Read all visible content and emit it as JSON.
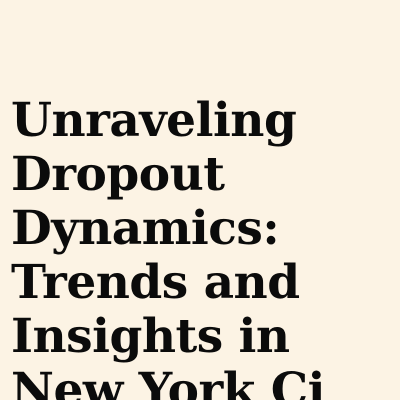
{
  "title": {
    "lines": [
      "Unraveling",
      "Dropout",
      "Dynamics:",
      "Trends and",
      "Insights in",
      "New York Ci"
    ]
  },
  "colors": {
    "background": "#fcf3e4",
    "text": "#0b0b0b"
  }
}
